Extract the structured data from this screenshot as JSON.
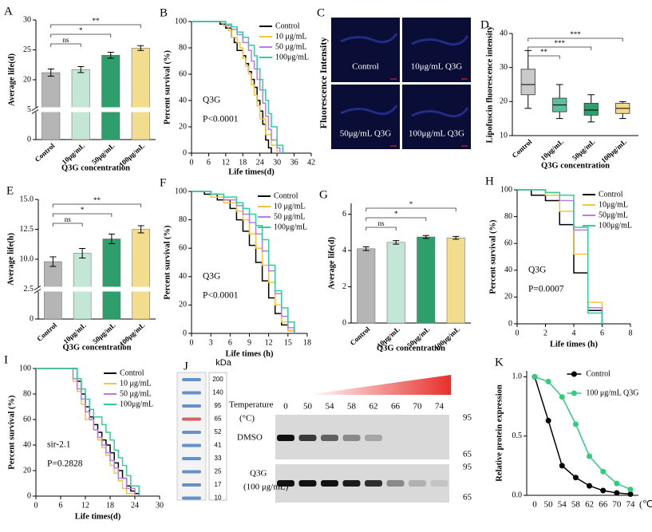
{
  "chart_data": [
    {
      "panel": "A",
      "type": "bar",
      "categories": [
        "Control",
        "10μg/mL",
        "50μg/mL",
        "100μg/mL"
      ],
      "values": [
        21.2,
        21.7,
        24.1,
        25.3
      ],
      "errors": [
        0.6,
        0.5,
        0.5,
        0.4
      ],
      "colors": [
        "#b5b5b5",
        "#c3e6d6",
        "#2f9e6d",
        "#f2dc8e"
      ],
      "ylabel": "Average life(d)",
      "xlabel": "Q3G concentration",
      "ylim": [
        0,
        30
      ],
      "ybreak": [
        5,
        15
      ],
      "yticks": [
        0,
        5,
        20,
        25,
        30
      ],
      "significance": [
        {
          "label": "ns",
          "groups": [
            "Control",
            "10μg/mL"
          ]
        },
        {
          "label": "*",
          "groups": [
            "Control",
            "50μg/mL"
          ]
        },
        {
          "label": "**",
          "groups": [
            "Control",
            "100μg/mL"
          ]
        }
      ]
    },
    {
      "panel": "B",
      "type": "step",
      "ylabel": "Percent survival (%)",
      "xlabel": "Life times(d)",
      "xlim": [
        0,
        42
      ],
      "xticks": [
        0,
        6,
        12,
        18,
        24,
        30,
        36,
        42
      ],
      "ylim": [
        0,
        100
      ],
      "yticks": [
        0,
        20,
        40,
        60,
        80,
        100
      ],
      "annotations": [
        "Q3G",
        "P<0.0001"
      ],
      "series": [
        {
          "name": "Control",
          "color": "#000000",
          "x": [
            0,
            10,
            12,
            14,
            15,
            16,
            18,
            19,
            20,
            21,
            22,
            23,
            24,
            25,
            26,
            27,
            28
          ],
          "values": [
            100,
            98,
            95,
            88,
            84,
            78,
            74,
            68,
            62,
            56,
            50,
            40,
            32,
            22,
            10,
            4,
            0
          ]
        },
        {
          "name": "10 μg/mL",
          "color": "#f5c542",
          "x": [
            0,
            11,
            13,
            14,
            16,
            17,
            18,
            19,
            20,
            21,
            22,
            23,
            24,
            26,
            28,
            30
          ],
          "values": [
            100,
            97,
            93,
            88,
            84,
            80,
            72,
            66,
            60,
            52,
            44,
            36,
            26,
            14,
            6,
            0
          ]
        },
        {
          "name": "50 μg/mL",
          "color": "#b77de0",
          "x": [
            0,
            12,
            14,
            16,
            18,
            20,
            21,
            22,
            23,
            24,
            25,
            26,
            27,
            28,
            30,
            31
          ],
          "values": [
            100,
            97,
            94,
            90,
            84,
            78,
            70,
            64,
            56,
            48,
            38,
            28,
            18,
            10,
            4,
            0
          ]
        },
        {
          "name": "100μg/mL",
          "color": "#2ecf9c",
          "x": [
            0,
            12,
            14,
            16,
            18,
            20,
            22,
            23,
            24,
            25,
            26,
            27,
            28,
            30,
            32
          ],
          "values": [
            100,
            98,
            96,
            92,
            88,
            82,
            74,
            64,
            56,
            48,
            40,
            30,
            20,
            6,
            0
          ]
        }
      ]
    },
    {
      "panel": "D",
      "type": "box",
      "categories": [
        "Control",
        "10μg/mL",
        "50μg/mL",
        "100μg/mL"
      ],
      "min": [
        18,
        15,
        14,
        15
      ],
      "q1": [
        22,
        17,
        16,
        16.5
      ],
      "median": [
        25,
        19,
        17.5,
        18
      ],
      "q3": [
        29.5,
        21,
        19.5,
        19.5
      ],
      "max": [
        35,
        25,
        22,
        20
      ],
      "colors": [
        "#cacaca",
        "#5cbf9f",
        "#2f9e6d",
        "#f2d88a"
      ],
      "ylabel": "Lipofuscin fluorescence intensity",
      "xlabel": "Q3G concentration",
      "ylim": [
        10,
        40
      ],
      "yticks": [
        10,
        20,
        30,
        40
      ],
      "significance": [
        {
          "label": "**",
          "groups": [
            "Control",
            "10μg/mL"
          ]
        },
        {
          "label": "***",
          "groups": [
            "Control",
            "50μg/mL"
          ]
        },
        {
          "label": "***",
          "groups": [
            "Control",
            "100μg/mL"
          ]
        }
      ]
    },
    {
      "panel": "E",
      "type": "bar",
      "categories": [
        "Control",
        "10μg/mL",
        "50μg/mL",
        "100μg/mL"
      ],
      "values": [
        9.8,
        10.5,
        11.7,
        12.5
      ],
      "errors": [
        0.4,
        0.4,
        0.4,
        0.3
      ],
      "colors": [
        "#b5b5b5",
        "#c3e6d6",
        "#2f9e6d",
        "#f2dc8e"
      ],
      "ylabel": "Average life(h)",
      "xlabel": "Q3G concentration",
      "ylim": [
        0,
        15
      ],
      "ybreak": [
        2.5,
        7.5
      ],
      "yticks": [
        0,
        2.5,
        {
          "value": 10,
          "label": "10.0"
        },
        12.5,
        {
          "value": 15,
          "label": "15.0"
        }
      ],
      "significance": [
        {
          "label": "ns",
          "groups": [
            "Control",
            "10μg/mL"
          ]
        },
        {
          "label": "*",
          "groups": [
            "Control",
            "50μg/mL"
          ]
        },
        {
          "label": "**",
          "groups": [
            "Control",
            "100μg/mL"
          ]
        }
      ]
    },
    {
      "panel": "F",
      "type": "step",
      "ylabel": "Percent survival (%)",
      "xlabel": "Life times  (h)",
      "xlim": [
        0,
        18
      ],
      "xticks": [
        0,
        3,
        6,
        9,
        12,
        15,
        18
      ],
      "ylim": [
        0,
        100
      ],
      "yticks": [
        0,
        20,
        40,
        60,
        80,
        100
      ],
      "annotations": [
        "Q3G",
        "P<0.0001"
      ],
      "series": [
        {
          "name": "Control",
          "color": "#000000",
          "x": [
            0,
            2,
            4,
            6,
            7,
            8,
            9,
            10,
            11,
            12,
            13,
            14,
            15,
            16
          ],
          "values": [
            100,
            98,
            94,
            88,
            80,
            72,
            62,
            50,
            37,
            25,
            14,
            6,
            2,
            0
          ]
        },
        {
          "name": "10 μg/mL",
          "color": "#f5c542",
          "x": [
            0,
            3,
            5,
            7,
            8,
            9,
            10,
            11,
            12,
            13,
            14,
            15,
            16
          ],
          "values": [
            100,
            96,
            92,
            86,
            80,
            70,
            60,
            48,
            36,
            20,
            8,
            2,
            0
          ]
        },
        {
          "name": "50 μg/mL",
          "color": "#b77de0",
          "x": [
            0,
            3,
            5,
            7,
            8,
            9,
            10,
            11,
            12,
            13,
            14,
            15,
            16
          ],
          "values": [
            100,
            98,
            94,
            90,
            84,
            78,
            70,
            58,
            44,
            28,
            12,
            4,
            0
          ]
        },
        {
          "name": "100μg/mL",
          "color": "#2ecf9c",
          "x": [
            0,
            3,
            5,
            7,
            8,
            9,
            10,
            11,
            12,
            13,
            14,
            15,
            16
          ],
          "values": [
            100,
            98,
            96,
            92,
            88,
            84,
            76,
            66,
            48,
            30,
            18,
            8,
            0
          ]
        }
      ]
    },
    {
      "panel": "G",
      "type": "bar",
      "categories": [
        "Control",
        "10μg/mL",
        "50μg/mL",
        "100μg/mL"
      ],
      "values": [
        4.1,
        4.45,
        4.75,
        4.7
      ],
      "errors": [
        0.1,
        0.1,
        0.08,
        0.08
      ],
      "colors": [
        "#b5b5b5",
        "#c3e6d6",
        "#2f9e6d",
        "#f2dc8e"
      ],
      "ylabel": "Average life(d)",
      "xlabel": "Q3G concentration",
      "ylim": [
        0,
        6.6
      ],
      "yticks": [
        0,
        2,
        4,
        6
      ],
      "significance": [
        {
          "label": "ns",
          "groups": [
            "Control",
            "10μg/mL"
          ]
        },
        {
          "label": "*",
          "groups": [
            "Control",
            "50μg/mL"
          ]
        },
        {
          "label": "*",
          "groups": [
            "Control",
            "100μg/mL"
          ]
        }
      ]
    },
    {
      "panel": "H",
      "type": "step",
      "ylabel": "Percent survival (%)",
      "xlabel": "Life times  (h)",
      "xlim": [
        0,
        8
      ],
      "xticks": [
        0,
        2,
        4,
        6,
        8
      ],
      "ylim": [
        0,
        100
      ],
      "yticks": [
        0,
        20,
        40,
        60,
        80,
        100
      ],
      "annotations": [
        "Q3G",
        "P=0.0007"
      ],
      "series": [
        {
          "name": "Control",
          "color": "#000000",
          "x": [
            0,
            1,
            2,
            3,
            4,
            5,
            6
          ],
          "values": [
            100,
            96,
            92,
            74,
            38,
            10,
            0
          ]
        },
        {
          "name": "10μg/mL",
          "color": "#f5c542",
          "x": [
            0,
            1,
            2,
            3,
            4,
            5,
            6
          ],
          "values": [
            100,
            100,
            96,
            84,
            52,
            16,
            0
          ]
        },
        {
          "name": "50μg/mL",
          "color": "#b77de0",
          "x": [
            0,
            1,
            2,
            3,
            4,
            5,
            6
          ],
          "values": [
            100,
            100,
            98,
            92,
            70,
            12,
            0
          ]
        },
        {
          "name": "100μg/mL",
          "color": "#2ecf9c",
          "x": [
            0,
            1,
            2,
            3,
            4,
            5,
            6
          ],
          "values": [
            100,
            100,
            98,
            96,
            72,
            8,
            0
          ]
        }
      ]
    },
    {
      "panel": "I",
      "type": "step",
      "ylabel": "Percent survival (%)",
      "xlabel": "Life times(d)",
      "xlim": [
        0,
        30
      ],
      "xticks": [
        0,
        6,
        12,
        18,
        24,
        30
      ],
      "ylim": [
        0,
        100
      ],
      "yticks": [
        0,
        20,
        40,
        60,
        80,
        100
      ],
      "annotations": [
        "sir-2.1",
        "P=0.2828"
      ],
      "series": [
        {
          "name": "Control",
          "color": "#000000",
          "x": [
            0,
            10,
            11,
            12,
            13,
            14,
            15,
            16,
            17,
            18,
            19,
            20,
            21,
            22,
            23,
            24,
            25
          ],
          "values": [
            100,
            90,
            80,
            70,
            62,
            56,
            50,
            44,
            40,
            34,
            26,
            20,
            14,
            8,
            4,
            2,
            0
          ]
        },
        {
          "name": "10 μg/mL",
          "color": "#f5c542",
          "x": [
            0,
            9,
            10,
            11,
            12,
            14,
            15,
            16,
            17,
            18,
            19,
            20,
            21,
            22,
            24
          ],
          "values": [
            100,
            90,
            82,
            72,
            60,
            52,
            44,
            38,
            32,
            24,
            18,
            12,
            6,
            2,
            0
          ]
        },
        {
          "name": "50 μg/mL",
          "color": "#b77de0",
          "x": [
            0,
            9,
            10,
            11,
            12,
            13,
            14,
            15,
            16,
            17,
            18,
            19,
            20,
            22,
            24
          ],
          "values": [
            100,
            92,
            84,
            76,
            66,
            60,
            52,
            46,
            40,
            34,
            28,
            22,
            14,
            6,
            0
          ]
        },
        {
          "name": "100μg/mL",
          "color": "#2ecf9c",
          "x": [
            0,
            10,
            11,
            12,
            13,
            14,
            16,
            17,
            18,
            19,
            20,
            21,
            22,
            23,
            25
          ],
          "values": [
            100,
            92,
            84,
            76,
            68,
            62,
            56,
            50,
            44,
            36,
            30,
            24,
            16,
            8,
            0
          ]
        }
      ]
    },
    {
      "panel": "K",
      "type": "line",
      "categories": [
        "0",
        "50",
        "54",
        "58",
        "62",
        "66",
        "70",
        "74"
      ],
      "xunit": "(℃)",
      "ylabel": "Relative protein expression",
      "ylim": [
        0,
        1.05
      ],
      "yticks": [
        {
          "value": 0,
          "label": "0.0"
        },
        0.5,
        {
          "value": 1,
          "label": "1.0"
        }
      ],
      "series": [
        {
          "name": "Control",
          "color": "#000000",
          "values": [
            1.0,
            0.63,
            0.25,
            0.15,
            0.08,
            0.04,
            0.02,
            0.01
          ]
        },
        {
          "name": "100 μg/mL Q3G",
          "color": "#2ecf7c",
          "values": [
            1.0,
            0.96,
            0.83,
            0.6,
            0.33,
            0.2,
            0.1,
            0.05
          ]
        }
      ]
    }
  ],
  "fluorescence": {
    "panel": "C",
    "ylabel": "Fluorescence Intensity",
    "labels": [
      "Control",
      "10μg/mL Q3G",
      "50μg/mL Q3G",
      "100μg/mL Q3G"
    ]
  },
  "blot": {
    "panel": "J",
    "unit": "kDa",
    "ladder": [
      200,
      140,
      95,
      65,
      52,
      41,
      33,
      25,
      17,
      10
    ],
    "temperature_label": [
      "Temperature",
      "(°C)"
    ],
    "temperatures": [
      0,
      50,
      54,
      58,
      62,
      66,
      70,
      74
    ],
    "markers": [
      95,
      65
    ],
    "rows": [
      {
        "name": [
          "DMSO"
        ],
        "intensity": [
          1,
          0.8,
          0.6,
          0.4,
          0.25,
          0,
          0,
          0
        ]
      },
      {
        "name": [
          "Q3G",
          "(100 μg/mL)"
        ],
        "intensity": [
          1,
          1,
          1,
          0.95,
          0.85,
          0.4,
          0.2,
          0.1
        ]
      }
    ]
  }
}
